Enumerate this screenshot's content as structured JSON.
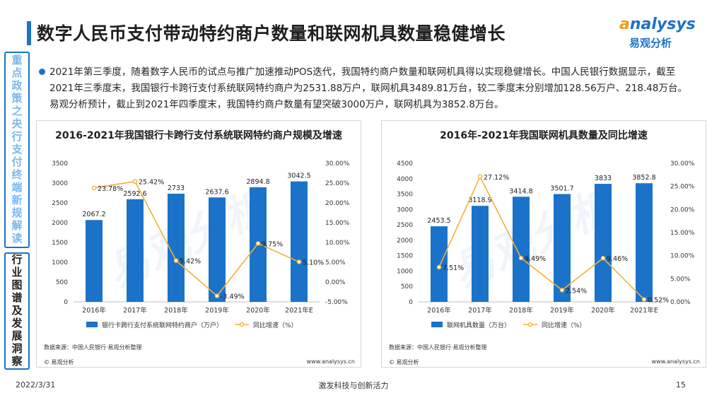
{
  "header": {
    "title": "数字人民币支付带动特约商户数量和联网机具数量稳健增长",
    "logo_word_a": "a",
    "logo_word_rest": "nalysys",
    "logo_cn": "易观分析"
  },
  "sidebar": {
    "box1": "重点政策之央行支付终端新规解读",
    "box2": "行业图谱及发展洞察"
  },
  "summary": {
    "text": "2021年第三季度，随着数字人民币的试点与推广加速推动POS迭代，我国特约商户数量和联网机具得以实现稳健增长。中国人民银行数据显示，截至2021年三季度末，我国银行卡跨行支付系统联网特约商户为2531.88万户，联网机具3489.81万台，较二季度末分别增加128.56万户、218.48万台。易观分析预计，截止到2021年四季度末，我国特约商户数量有望突破3000万户，联网机具为3852.8万台。"
  },
  "charts_meta": {
    "source": "数据来源：中国人民银行·易观分析整理",
    "copyright": "© 易观分析",
    "url": "www.analysys.cn",
    "bar_color": "#1a73c9",
    "line_color": "#f2b03a"
  },
  "chart_data": [
    {
      "type": "bar",
      "title": "2016-2021年我国银行卡跨行支付系统联网特约商户规模及增速",
      "categories": [
        "2016年",
        "2017年",
        "2018年",
        "2019年",
        "2020年",
        "2021年E"
      ],
      "series": [
        {
          "name": "银行卡跨行支付系统联网特约商户（万户）",
          "type": "bar",
          "axis": "left",
          "values": [
            2067.2,
            2592.6,
            2733,
            2637.6,
            2894.8,
            3042.5
          ],
          "labels": [
            "2067.2",
            "2592.6",
            "2733",
            "2637.6",
            "2894.8",
            "3042.5"
          ]
        },
        {
          "name": "同比增速（%）",
          "type": "line",
          "axis": "right",
          "values": [
            23.78,
            25.42,
            5.42,
            -3.49,
            9.75,
            5.1
          ],
          "labels": [
            "23.78%",
            "25.42%",
            "5.42%",
            "-3.49%",
            "9.75%",
            "5.10%"
          ]
        }
      ],
      "ylim_left": [
        0,
        3500
      ],
      "yticks_left": [
        "0",
        "500",
        "1000",
        "1500",
        "2000",
        "2500",
        "3000",
        "3500"
      ],
      "ylim_right": [
        -5,
        30
      ],
      "yticks_right": [
        "-5.00%",
        "0.00%",
        "5.00%",
        "10.00%",
        "15.00%",
        "20.00%",
        "25.00%",
        "30.00%"
      ],
      "legend_position": "bottom"
    },
    {
      "type": "bar",
      "title": "2016年-2021年我国联网机具数量及同比增速",
      "categories": [
        "2016年",
        "2017年",
        "2018年",
        "2019年",
        "2020年",
        "2021年E"
      ],
      "series": [
        {
          "name": "联网机具数量（万台）",
          "type": "bar",
          "axis": "left",
          "values": [
            2453.5,
            3118.9,
            3414.8,
            3501.7,
            3833,
            3852.8
          ],
          "labels": [
            "2453.5",
            "3118.9",
            "3414.8",
            "3501.7",
            "3833",
            "3852.8"
          ]
        },
        {
          "name": "同比增速（%）",
          "type": "line",
          "axis": "right",
          "values": [
            7.51,
            27.12,
            9.49,
            2.54,
            9.46,
            0.52
          ],
          "labels": [
            "7.51%",
            "27.12%",
            "9.49%",
            "2.54%",
            "9.46%",
            "0.52%"
          ]
        }
      ],
      "ylim_left": [
        0,
        4500
      ],
      "yticks_left": [
        "0",
        "500",
        "1000",
        "1500",
        "2000",
        "2500",
        "3000",
        "3500",
        "4000",
        "4500"
      ],
      "ylim_right": [
        0,
        30
      ],
      "yticks_right": [
        "0.00%",
        "5.00%",
        "10.00%",
        "15.00%",
        "20.00%",
        "25.00%",
        "30.00%"
      ],
      "legend_position": "bottom"
    }
  ],
  "footer": {
    "date": "2022/3/31",
    "slogan": "激发科技与创新活力",
    "page": "15"
  }
}
